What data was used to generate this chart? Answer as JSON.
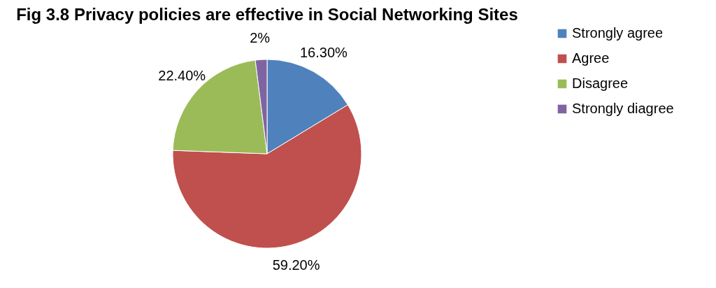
{
  "chart_data": {
    "type": "pie",
    "title": "Fig 3.8 Privacy policies are effective in Social Networking Sites",
    "categories": [
      "Strongly agree",
      "Agree",
      "Disagree",
      "Strongly diagree"
    ],
    "values": [
      16.3,
      59.2,
      22.4,
      2
    ],
    "colors": [
      "#4f81bd",
      "#c0504d",
      "#9bbb59",
      "#8064a2"
    ],
    "value_labels": [
      "16.30%",
      "59.20%",
      "22.40%",
      "2%"
    ],
    "legend": "right"
  }
}
